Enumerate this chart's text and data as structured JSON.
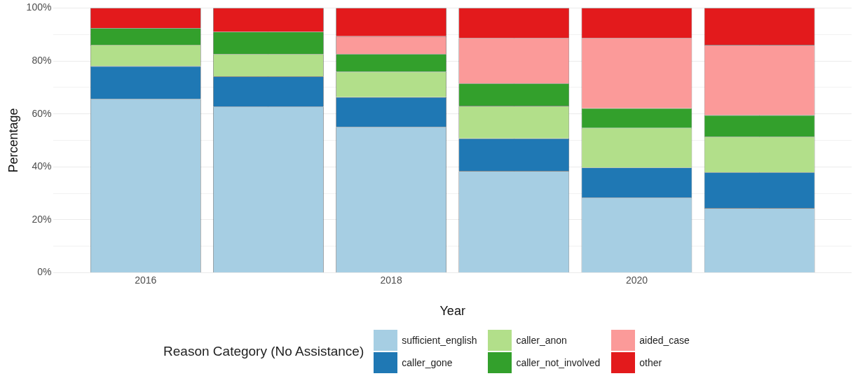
{
  "chart_data": {
    "type": "bar",
    "stacked": true,
    "xlabel": "Year",
    "ylabel": "Percentage",
    "legend_title": "Reason Category (No Assistance)",
    "legend": "bottom",
    "grid": true,
    "x": [
      2016,
      2017,
      2018,
      2019,
      2020,
      2021
    ],
    "xlim": [
      2015.25,
      2021.75
    ],
    "xticks": [
      2016,
      2018,
      2020
    ],
    "ylim": [
      0,
      100
    ],
    "yticks": [
      {
        "value": 0,
        "label": "0%"
      },
      {
        "value": 10,
        "label": null
      },
      {
        "value": 20,
        "label": "20%"
      },
      {
        "value": 30,
        "label": null
      },
      {
        "value": 40,
        "label": "40%"
      },
      {
        "value": 50,
        "label": null
      },
      {
        "value": 60,
        "label": "60%"
      },
      {
        "value": 70,
        "label": null
      },
      {
        "value": 80,
        "label": "80%"
      },
      {
        "value": 90,
        "label": null
      },
      {
        "value": 100,
        "label": "100%"
      }
    ],
    "series": [
      {
        "name": "sufficient_english",
        "color": "#a6cee3",
        "values": [
          65.6,
          62.7,
          55.1,
          38.4,
          28.4,
          24.4
        ]
      },
      {
        "name": "caller_gone",
        "color": "#1f78b4",
        "values": [
          12.4,
          11.4,
          11.2,
          12.3,
          11.3,
          13.5
        ]
      },
      {
        "name": "caller_anon",
        "color": "#b2df8a",
        "values": [
          8.1,
          8.5,
          9.6,
          12.3,
          15.0,
          13.5
        ]
      },
      {
        "name": "caller_not_involved",
        "color": "#33a02c",
        "values": [
          6.3,
          8.4,
          6.7,
          8.5,
          7.4,
          8.1
        ]
      },
      {
        "name": "aided_case",
        "color": "#fb9a99",
        "values": [
          0,
          0,
          6.7,
          17.1,
          26.5,
          26.5
        ]
      },
      {
        "name": "other",
        "color": "#e31a1c",
        "values": [
          7.6,
          9.0,
          10.7,
          11.4,
          11.4,
          14.0
        ]
      }
    ]
  }
}
